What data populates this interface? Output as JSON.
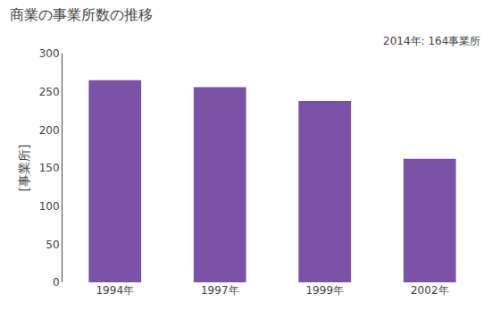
{
  "chart_data": {
    "type": "bar",
    "title": "商業の事業所数の推移",
    "ylabel": "[事業所]",
    "annotation": "2014年: 164事業所",
    "categories": [
      "1994年",
      "1997年",
      "1999年",
      "2002年"
    ],
    "values": [
      265,
      256,
      238,
      162
    ],
    "color": "#7B52A6",
    "ylim": [
      0,
      300
    ],
    "yticks": [
      0,
      50,
      100,
      150,
      200,
      250,
      300
    ],
    "grid": false
  }
}
